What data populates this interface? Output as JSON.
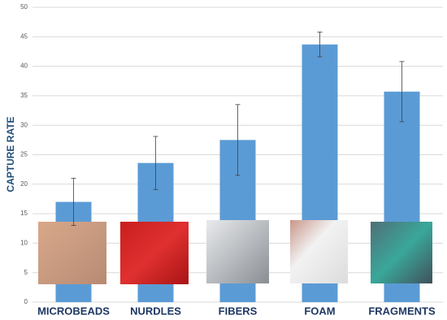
{
  "chart_data": {
    "type": "bar",
    "y_label": "CAPTURE RATE",
    "categories": [
      "MICROBEADS",
      "NURDLES",
      "FIBERS",
      "FOAM",
      "FRAGMENTS"
    ],
    "values": [
      17,
      23.6,
      27.5,
      43.7,
      35.7
    ],
    "errors": [
      4,
      4.5,
      6,
      2.1,
      5.1
    ],
    "color": "#5b9bd5",
    "ylim": [
      0,
      50
    ],
    "yticks": [
      0,
      5,
      10,
      15,
      20,
      25,
      30,
      35,
      40,
      45,
      50
    ],
    "grid": true
  }
}
